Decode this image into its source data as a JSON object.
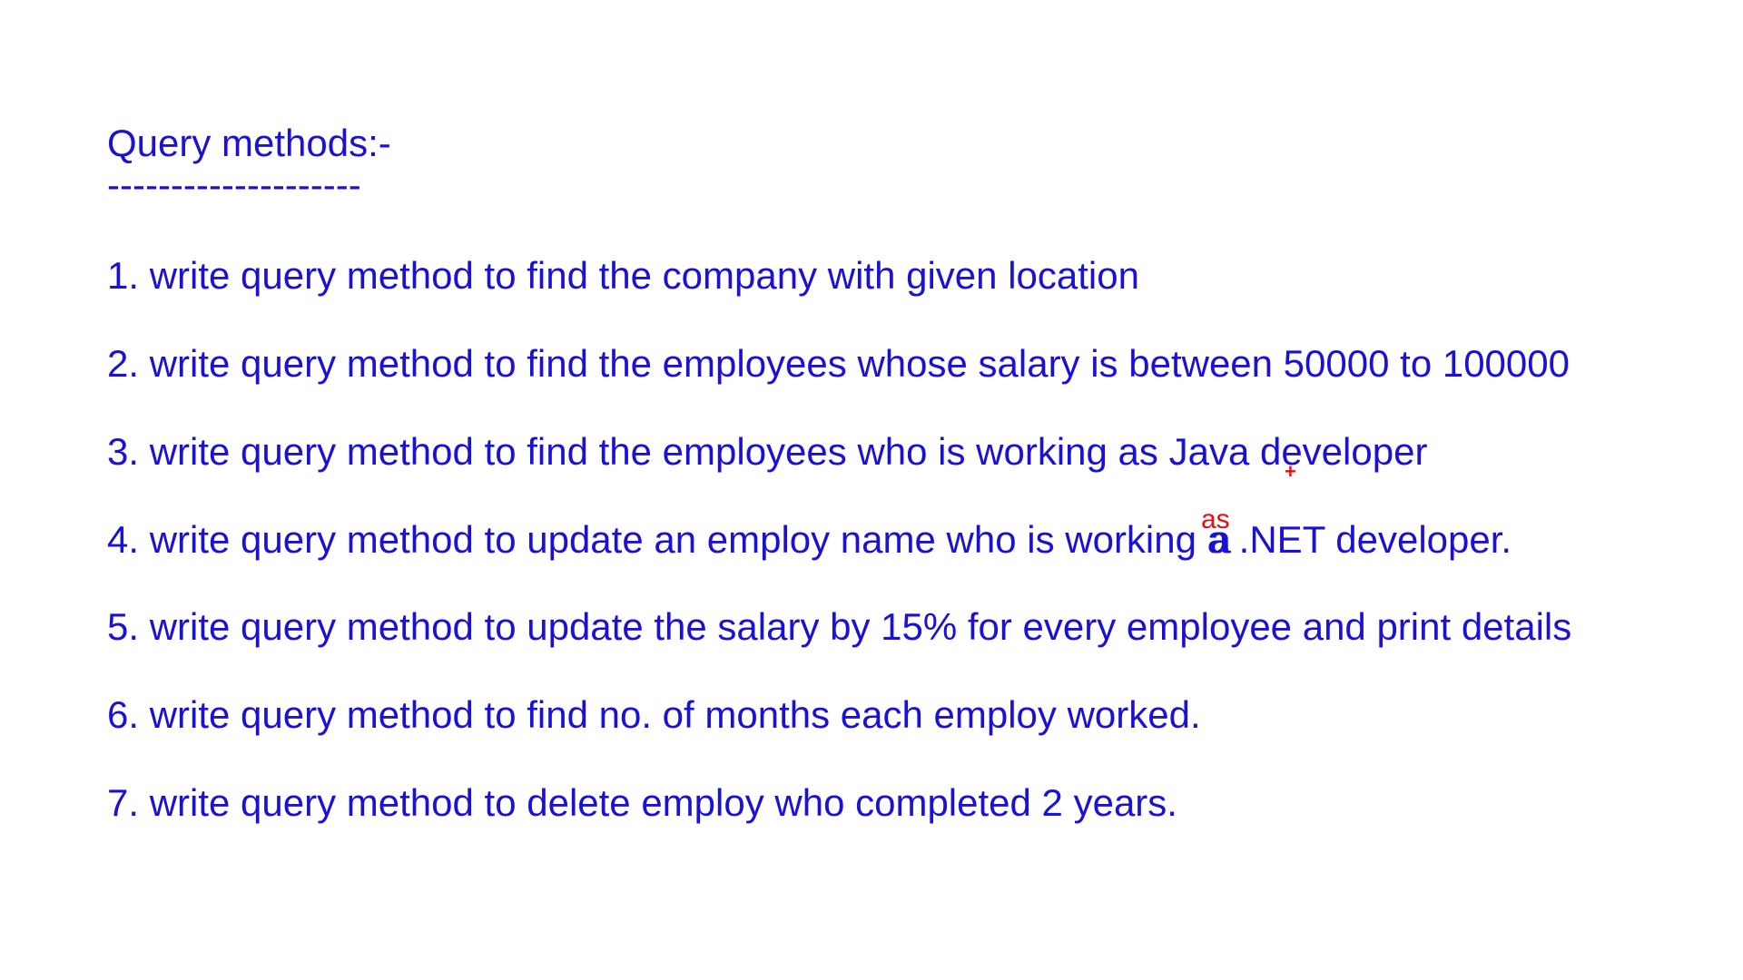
{
  "heading": "Query methods:-",
  "underline": "--------------------",
  "items": [
    {
      "text": "1. write query method to find the company with given location"
    },
    {
      "text": "2. write query method to find the employees whose salary is between 50000  to 100000"
    },
    {
      "text": "3. write query method to find the employees who is working as Java developer",
      "insert_mark": "+"
    },
    {
      "before": "4. write query method to update an employ name who is working ",
      "overstrike_a": "a",
      "overstrike_b": "a",
      "after": " .NET developer.",
      "insert_text": "as"
    },
    {
      "text": "5. write query method to update the salary by 15% for every employee and print details"
    },
    {
      "text": "6. write query method to find no. of months each employ worked."
    },
    {
      "text": "7. write query method to delete employ who completed 2 years."
    }
  ],
  "colors": {
    "text": "#1a10d6",
    "annotation": "#e0101a",
    "background": "#ffffff"
  }
}
